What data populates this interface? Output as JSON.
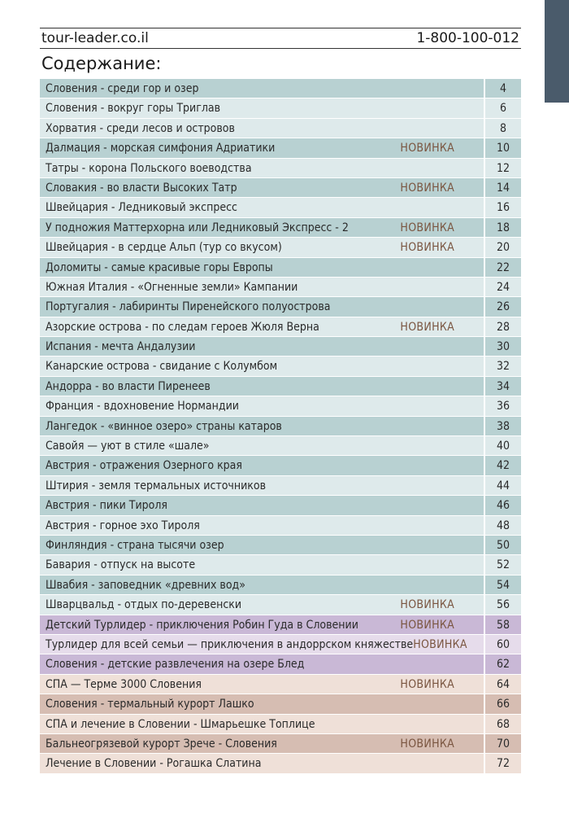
{
  "header": {
    "website": "tour-leader.co.il",
    "phone": "1-800-100-012"
  },
  "toc_title": "Содержание:",
  "toc": [
    {
      "title": "Словения - среди гор и озер",
      "badge": "",
      "page": "4",
      "tone": "a"
    },
    {
      "title": "Словения - вокруг горы Триглав",
      "badge": "",
      "page": "6",
      "tone": "b"
    },
    {
      "title": "Хорватия - среди лесов и островов",
      "badge": "",
      "page": "8",
      "tone": "b"
    },
    {
      "title": "Далмация - морская симфония Адриатики",
      "badge": "НОВИНКА",
      "page": "10",
      "tone": "a"
    },
    {
      "title": "Татры - корона Польского воеводства",
      "badge": "",
      "page": "12",
      "tone": "b"
    },
    {
      "title": "Словакия - во власти Высоких Татр",
      "badge": "НОВИНКА",
      "page": "14",
      "tone": "a"
    },
    {
      "title": "Швейцария - Ледниковый экспресс",
      "badge": "",
      "page": "16",
      "tone": "b"
    },
    {
      "title": "У подножия Маттерхорна или Ледниковый Экспресс - 2",
      "badge": "НОВИНКА",
      "page": "18",
      "tone": "a"
    },
    {
      "title": "Швейцария - в сердце Альп (тур со вкусом)",
      "badge": "НОВИНКА",
      "page": "20",
      "tone": "b"
    },
    {
      "title": "Доломиты - самые красивые горы Европы",
      "badge": "",
      "page": "22",
      "tone": "a"
    },
    {
      "title": "Южная Италия - «Огненные земли» Кампании",
      "badge": "",
      "page": "24",
      "tone": "b"
    },
    {
      "title": "Португалия - лабиринты Пиренейского полуострова",
      "badge": "",
      "page": "26",
      "tone": "a"
    },
    {
      "title": "Азорские острова - по следам героев Жюля Верна",
      "badge": "НОВИНКА",
      "page": "28",
      "tone": "b"
    },
    {
      "title": "Испания - мечта Андалузии",
      "badge": "",
      "page": "30",
      "tone": "a"
    },
    {
      "title": "Канарские острова - свидание с Колумбом",
      "badge": "",
      "page": "32",
      "tone": "b"
    },
    {
      "title": "Андорра - во власти Пиренеев",
      "badge": "",
      "page": "34",
      "tone": "a"
    },
    {
      "title": "Франция - вдохновение Нормандии",
      "badge": "",
      "page": "36",
      "tone": "b"
    },
    {
      "title": "Лангедок - «винное озеро» страны катаров",
      "badge": "",
      "page": "38",
      "tone": "a"
    },
    {
      "title": "Савойя — уют в стиле «шале»",
      "badge": "",
      "page": "40",
      "tone": "b"
    },
    {
      "title": "Австрия - отражения Озерного края",
      "badge": "",
      "page": "42",
      "tone": "a"
    },
    {
      "title": "Штирия - земля термальных источников",
      "badge": "",
      "page": "44",
      "tone": "b"
    },
    {
      "title": "Австрия - пики Тироля",
      "badge": "",
      "page": "46",
      "tone": "a"
    },
    {
      "title": "Австрия - горное эхо Тироля",
      "badge": "",
      "page": "48",
      "tone": "b"
    },
    {
      "title": "Финляндия - страна тысячи озер",
      "badge": "",
      "page": "50",
      "tone": "a"
    },
    {
      "title": "Бавария - отпуск на высоте",
      "badge": "",
      "page": "52",
      "tone": "b"
    },
    {
      "title": "Швабия - заповедник «древних вод»",
      "badge": "",
      "page": "54",
      "tone": "a"
    },
    {
      "title": "Шварцвальд - отдых по-деревенски",
      "badge": "НОВИНКА",
      "page": "56",
      "tone": "b"
    },
    {
      "title": "Детский Турлидер - приключения Робин Гуда в Словении",
      "badge": "НОВИНКА",
      "page": "58",
      "tone": "c"
    },
    {
      "title": "Турлидер для всей семьи — приключения в андоррском княжестве",
      "badge": "НОВИНКА",
      "page": "60",
      "tone": "d"
    },
    {
      "title": "Словения - детские развлечения на озере Блед",
      "badge": "",
      "page": "62",
      "tone": "c"
    },
    {
      "title": "СПА — Терме 3000 Словения",
      "badge": "НОВИНКА",
      "page": "64",
      "tone": "f"
    },
    {
      "title": "Словения - термальный курорт Лашко",
      "badge": "",
      "page": "66",
      "tone": "e"
    },
    {
      "title": "СПА и лечение в Словении - Шмарьешке Топлице",
      "badge": "",
      "page": "68",
      "tone": "f"
    },
    {
      "title": "Бальнеогрязевой курорт Зрече - Словения",
      "badge": "НОВИНКА",
      "page": "70",
      "tone": "e"
    },
    {
      "title": "Лечение в Словении - Рогашка Слатина",
      "badge": "",
      "page": "72",
      "tone": "f"
    }
  ]
}
